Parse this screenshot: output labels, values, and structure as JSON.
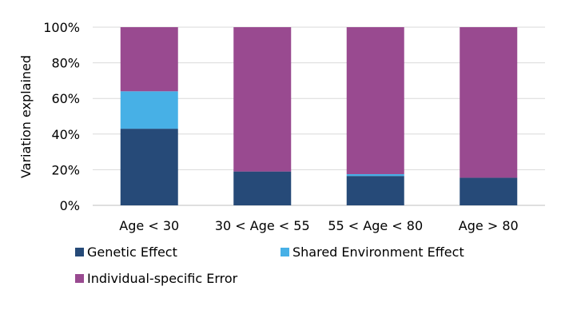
{
  "chart_data": {
    "type": "bar",
    "stacked": true,
    "percent": true,
    "ylabel": "Variation explained",
    "xlabel": "",
    "ylim": [
      0,
      100
    ],
    "yticks": [
      "0%",
      "20%",
      "40%",
      "60%",
      "80%",
      "100%"
    ],
    "grid": true,
    "legend_position": "bottom",
    "categories": [
      "Age < 30",
      "30 < Age < 55",
      "55 < Age < 80",
      "Age > 80"
    ],
    "series": [
      {
        "name": "Genetic Effect",
        "color": "#264a78",
        "values": [
          43,
          19,
          16.5,
          15.5
        ]
      },
      {
        "name": "Shared Environment Effect",
        "color": "#47b0e6",
        "values": [
          21,
          0,
          1,
          0
        ]
      },
      {
        "name": "Individual-specific Error",
        "color": "#994a90",
        "values": [
          36,
          81,
          82.5,
          84.5
        ]
      }
    ]
  }
}
